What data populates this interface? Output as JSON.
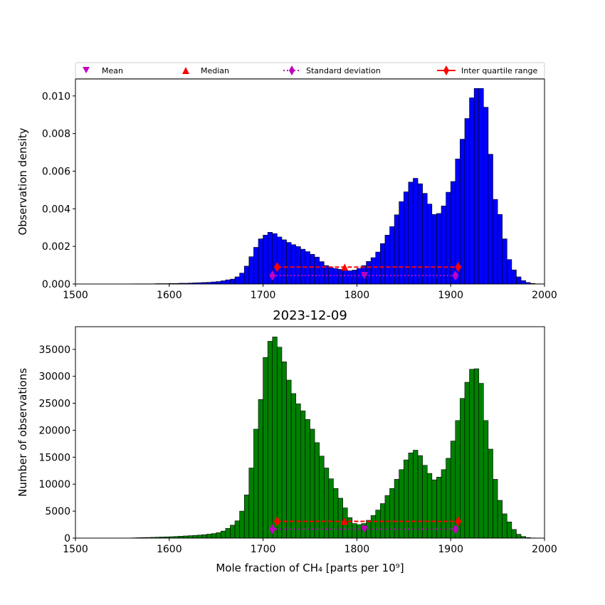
{
  "legend": {
    "mean_label": "Mean",
    "median_label": "Median",
    "std_label": "Standard deviation",
    "iqr_label": "Inter quartile range"
  },
  "colors": {
    "top_bars": "#0000ff",
    "bottom_bars": "#008000",
    "mean": "#c000c0",
    "median": "#ff0000",
    "std": "#c000c0",
    "iqr": "#ff0000"
  },
  "chart_data": [
    {
      "type": "bar",
      "title": "",
      "xlabel": "",
      "ylabel": "Observation density",
      "xlim": [
        1500,
        2000
      ],
      "ylim": [
        0,
        0.0109
      ],
      "xticks": [
        1500,
        1600,
        1700,
        1800,
        1900,
        2000
      ],
      "xtick_labels": [
        "1500",
        "1600",
        "1700",
        "1800",
        "1900",
        "2000"
      ],
      "yticks": [
        0,
        0.002,
        0.004,
        0.006,
        0.008,
        0.01
      ],
      "ytick_labels": [
        "0.000",
        "0.002",
        "0.004",
        "0.006",
        "0.008",
        "0.010"
      ],
      "bin_start": 1560,
      "bin_width": 5,
      "values": [
        1e-05,
        1e-05,
        1e-05,
        1e-05,
        1e-05,
        2e-05,
        2e-05,
        2e-05,
        3e-05,
        3e-05,
        4e-05,
        4e-05,
        5e-05,
        6e-05,
        7e-05,
        8e-05,
        9e-05,
        0.00011,
        0.00013,
        0.00017,
        0.00022,
        0.00026,
        0.00038,
        0.00058,
        0.00095,
        0.00145,
        0.00195,
        0.0024,
        0.0026,
        0.00275,
        0.00268,
        0.0025,
        0.00235,
        0.00221,
        0.00209,
        0.00199,
        0.00185,
        0.00172,
        0.00158,
        0.00143,
        0.00119,
        0.00098,
        0.00087,
        0.00082,
        0.00078,
        0.00073,
        0.0007,
        0.00074,
        0.00083,
        0.00098,
        0.0012,
        0.0014,
        0.0017,
        0.00215,
        0.0026,
        0.00305,
        0.00368,
        0.00438,
        0.0049,
        0.00542,
        0.00562,
        0.00533,
        0.00482,
        0.00425,
        0.0037,
        0.00375,
        0.00415,
        0.00488,
        0.00545,
        0.00665,
        0.0077,
        0.0088,
        0.0099,
        0.0104,
        0.0104,
        0.0094,
        0.0069,
        0.0045,
        0.0037,
        0.0024,
        0.0013,
        0.00075,
        0.00038,
        0.00018,
        8e-05,
        3e-05,
        1e-05,
        1e-05
      ],
      "mean": {
        "x": 1808,
        "y": 0.00045
      },
      "median": {
        "x": 1787,
        "y": 0.0009
      },
      "std": {
        "x": [
          1710,
          1905
        ],
        "y": 0.00045
      },
      "iqr": {
        "x": [
          1715,
          1908
        ],
        "y": 0.0009
      }
    },
    {
      "type": "bar",
      "title": "2023-12-09",
      "xlabel": "Mole fraction of CH₄ [parts per 10⁹]",
      "ylabel": "Number of observations",
      "xlim": [
        1500,
        2000
      ],
      "ylim": [
        0,
        39200
      ],
      "xticks": [
        1500,
        1600,
        1700,
        1800,
        1900,
        2000
      ],
      "xtick_labels": [
        "1500",
        "1600",
        "1700",
        "1800",
        "1900",
        "2000"
      ],
      "yticks": [
        0,
        5000,
        10000,
        15000,
        20000,
        25000,
        30000,
        35000
      ],
      "ytick_labels": [
        "0",
        "5000",
        "10000",
        "15000",
        "20000",
        "25000",
        "30000",
        "35000"
      ],
      "bin_start": 1560,
      "bin_width": 5,
      "values": [
        50,
        80,
        100,
        120,
        140,
        170,
        200,
        230,
        260,
        300,
        350,
        400,
        450,
        500,
        560,
        640,
        730,
        840,
        1000,
        1300,
        1800,
        2400,
        3200,
        5000,
        8000,
        13000,
        20200,
        25700,
        33500,
        36500,
        37300,
        35400,
        32700,
        29300,
        26800,
        24900,
        23600,
        22000,
        20200,
        17700,
        15200,
        13000,
        11000,
        9200,
        7400,
        5600,
        3800,
        2700,
        2500,
        2700,
        3300,
        4200,
        5200,
        6400,
        7900,
        9200,
        10900,
        12700,
        14500,
        15800,
        16300,
        15300,
        13500,
        12000,
        10800,
        11300,
        12700,
        14800,
        18000,
        21800,
        25900,
        28900,
        31300,
        31400,
        28700,
        21800,
        16500,
        10900,
        7000,
        4500,
        3000,
        1600,
        700,
        300,
        100,
        40,
        10,
        5
      ],
      "mean": {
        "x": 1808,
        "y": 1650
      },
      "median": {
        "x": 1787,
        "y": 3100
      },
      "std": {
        "x": [
          1710,
          1905
        ],
        "y": 1650
      },
      "iqr": {
        "x": [
          1715,
          1908
        ],
        "y": 3100
      }
    }
  ]
}
